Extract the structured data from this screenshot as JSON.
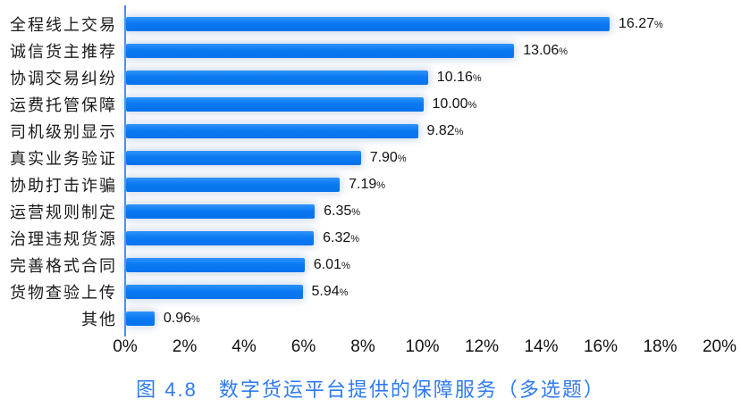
{
  "title": "图 4.8　数字货运平台提供的保障服务（多选题）",
  "colors": {
    "bar": "#0b79f2",
    "bar_gradient_top": "#2e93f9",
    "bar_gradient_bottom": "#0672ec",
    "axis_line": "#4a90ee",
    "title_text": "#2e7bf0",
    "label_text": "#1a1a1a"
  },
  "chart_data": {
    "type": "bar",
    "orientation": "horizontal",
    "title": "图 4.8　数字货运平台提供的保障服务（多选题）",
    "categories": [
      "全程线上交易",
      "诚信货主推荐",
      "协调交易纠纷",
      "运费托管保障",
      "司机级别显示",
      "真实业务验证",
      "协助打击诈骗",
      "运营规则制定",
      "治理违规货源",
      "完善格式合同",
      "货物查验上传",
      "其他"
    ],
    "values": [
      16.27,
      13.06,
      10.16,
      10.0,
      9.82,
      7.9,
      7.19,
      6.35,
      6.32,
      6.01,
      5.94,
      0.96
    ],
    "value_labels": [
      "16.27",
      "13.06",
      "10.16",
      "10.00",
      "9.82",
      "7.90",
      "7.19",
      "6.35",
      "6.32",
      "6.01",
      "5.94",
      "0.96"
    ],
    "value_suffix": "%",
    "xlabel": "",
    "ylabel": "",
    "xlim": [
      0,
      20
    ],
    "x_ticks": [
      0,
      2,
      4,
      6,
      8,
      10,
      12,
      14,
      16,
      18,
      20
    ],
    "x_tick_labels": [
      "0%",
      "2%",
      "4%",
      "6%",
      "8%",
      "10%",
      "12%",
      "14%",
      "16%",
      "18%",
      "20%"
    ],
    "grid": false,
    "legend": "none"
  }
}
